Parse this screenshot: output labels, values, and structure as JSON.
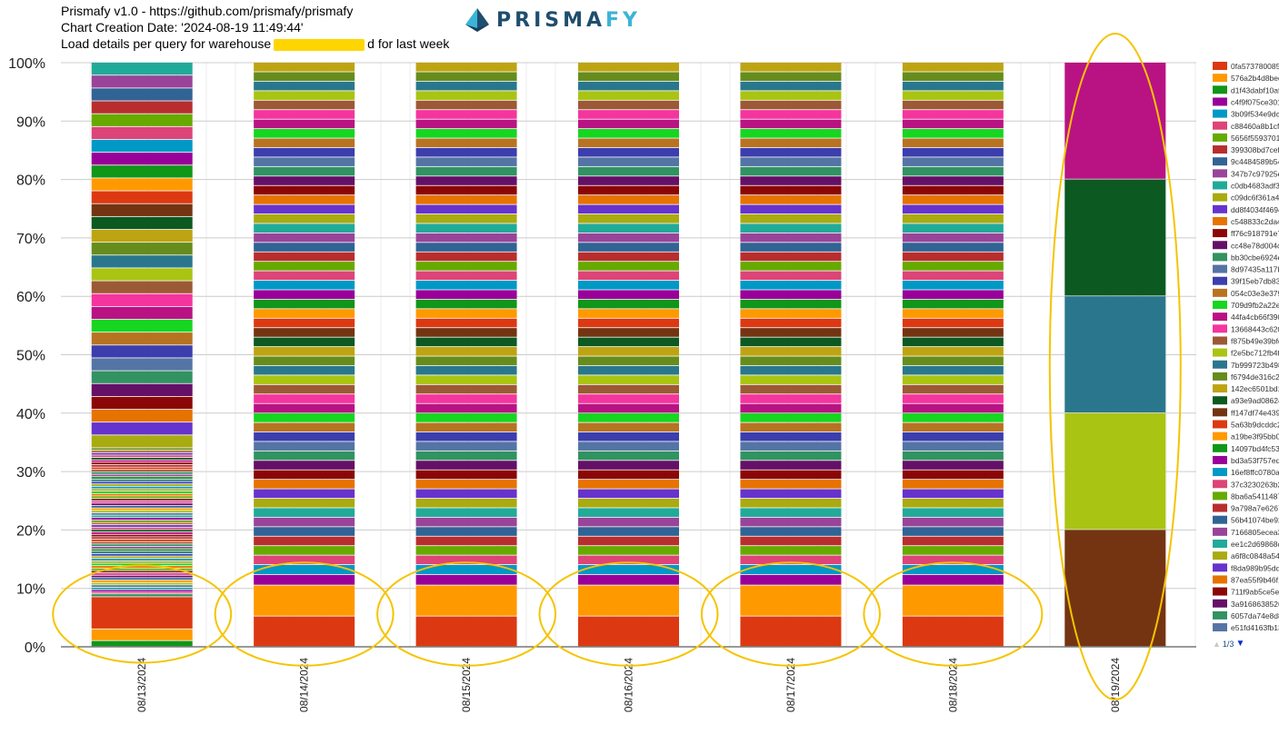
{
  "header": {
    "line1": "Prismafy v1.0 - https://github.com/prismafy/prismafy",
    "line2": "Chart Creation Date: '2024-08-19 11:49:44'",
    "line3_prefix": "Load details per query for warehouse",
    "line3_suffix": "d for last week",
    "logo_text_main": "PRISMA",
    "logo_text_accent": "FY"
  },
  "pager": {
    "label": "1/3",
    "prev_icon": "▲",
    "next_icon": "▼"
  },
  "colors": {
    "palette": [
      "#dc3912",
      "#ff9900",
      "#109618",
      "#990099",
      "#0099c6",
      "#dd4477",
      "#66aa00",
      "#b82e2e",
      "#316395",
      "#994499",
      "#22aa99",
      "#aaaa11",
      "#6633cc",
      "#e67300",
      "#8b0707",
      "#651067",
      "#329262",
      "#5574a6",
      "#3b3eac",
      "#b77322",
      "#16d620",
      "#b91383",
      "#f4359e",
      "#9c5935",
      "#a9c413",
      "#2a778d",
      "#668d1c",
      "#bea413",
      "#0c5922",
      "#743411"
    ],
    "highlight": "#f5c400",
    "gridline": "#cccccc"
  },
  "chart_data": {
    "type": "bar",
    "stacked": true,
    "normalized": true,
    "categories": [
      "08/13/2024",
      "08/14/2024",
      "08/15/2024",
      "08/16/2024",
      "08/17/2024",
      "08/18/2024",
      "08/19/2024"
    ],
    "ylim": [
      0,
      100
    ],
    "y_ticks": [
      "0%",
      "10%",
      "20%",
      "30%",
      "40%",
      "50%",
      "60%",
      "70%",
      "80%",
      "90%",
      "100%"
    ],
    "grid": true,
    "legend_position": "right",
    "series_total_visible_in_legend": 48,
    "legend": [
      "0fa573780085",
      "576a2b4d8bed",
      "d1f43dabf10af",
      "c4f9f075ce301",
      "3b09f534e9dc",
      "c88460a8b1cfc",
      "5656f5593701f",
      "399308bd7cefc",
      "9c4484589b54",
      "347b7c97925e",
      "c0db4683adf31",
      "c09dc6f361a4c",
      "dd8f4034f4694",
      "c548833c2da4",
      "ff76c918791e7",
      "cc48e78d004cl",
      "bb30cbe6924e",
      "8d97435a117b",
      "39f15eb7db83c",
      "054c03e3e379",
      "709d9fb2a22e",
      "44fa4cb66f390",
      "13668443c620",
      "f875b49e39bfd",
      "f2e5bc712fb4f",
      "7b999723b498",
      "f6794de316c27",
      "142ec6501bd1",
      "a93e9ad08624",
      "ff147df74e439",
      "5a63b9dcddc2",
      "a19be3f95bb0",
      "14097bd4fc53f",
      "bd3a53f757edc",
      "16ef8ffc0780ac",
      "37c3230263b2",
      "8ba6a5411487",
      "9a798a7e6267",
      "56b41074be92",
      "7166805ecea3",
      "ee1c2d69868c",
      "a6f8c0848a54",
      "f8da989b95dda",
      "87ea55f9b46f1",
      "711f9ab5ce5e",
      "3a91686385263",
      "6057da74e8d8",
      "e51fd4163fb13"
    ],
    "daily_shares": {
      "08/13/2024": {
        "bottom_segments": [
          1.0,
          2.0,
          5.5,
          0.5,
          0.3
        ],
        "thin_segment_count": 60,
        "thin_region_top": 34.0,
        "thick_segment_count": 30
      },
      "08/14/2024": {
        "bottom_segments": [
          5.2,
          5.3,
          1.8,
          1.7
        ],
        "upper_segment_count": 53
      },
      "08/15/2024": {
        "bottom_segments": [
          5.2,
          5.3,
          1.8,
          1.7
        ],
        "upper_segment_count": 53
      },
      "08/16/2024": {
        "bottom_segments": [
          5.2,
          5.3,
          1.8,
          1.7
        ],
        "upper_segment_count": 53
      },
      "08/17/2024": {
        "bottom_segments": [
          5.2,
          5.3,
          1.8,
          1.7
        ],
        "upper_segment_count": 53
      },
      "08/18/2024": {
        "bottom_segments": [
          5.2,
          5.3,
          1.8,
          1.7
        ],
        "upper_segment_count": 53
      },
      "08/19/2024": {
        "segments": [
          20,
          20,
          20,
          20,
          20
        ],
        "segment_color_indices": [
          29,
          24,
          25,
          28,
          21
        ]
      }
    },
    "annotations": [
      {
        "kind": "ellipse",
        "category": "08/13/2024",
        "y_range": [
          0,
          12
        ]
      },
      {
        "kind": "ellipse",
        "category": "08/14/2024",
        "y_range": [
          0,
          13
        ]
      },
      {
        "kind": "ellipse",
        "category": "08/15/2024",
        "y_range": [
          0,
          13
        ]
      },
      {
        "kind": "ellipse",
        "category": "08/16/2024",
        "y_range": [
          0,
          13
        ]
      },
      {
        "kind": "ellipse",
        "category": "08/17/2024",
        "y_range": [
          0,
          13
        ]
      },
      {
        "kind": "ellipse",
        "category": "08/18/2024",
        "y_range": [
          0,
          13
        ]
      },
      {
        "kind": "ellipse",
        "category": "08/19/2024",
        "y_range": [
          0,
          100
        ]
      }
    ]
  }
}
